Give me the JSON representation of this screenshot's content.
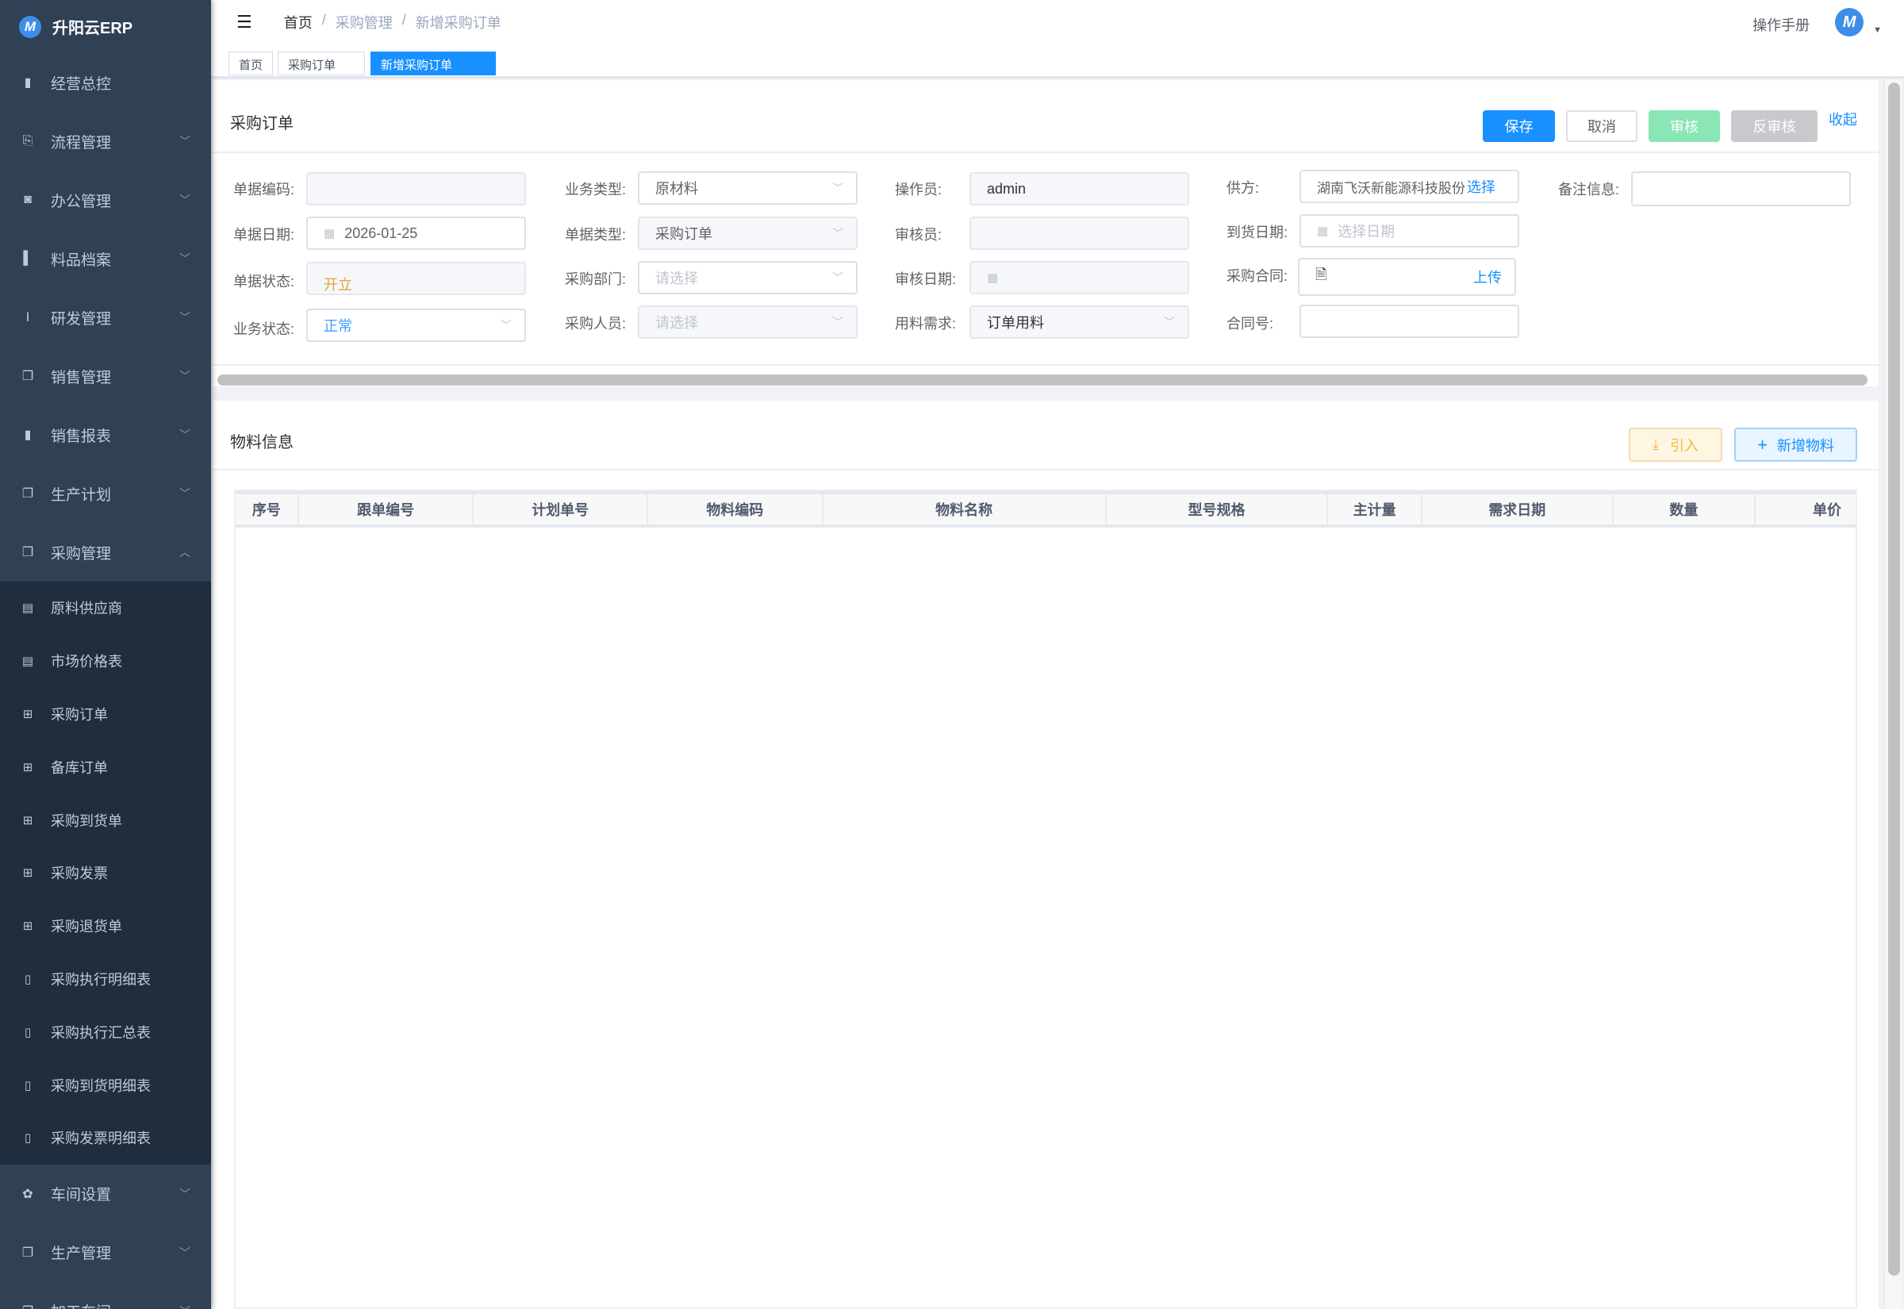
{
  "app": {
    "name": "升阳云ERP",
    "logo_letter": "M"
  },
  "sidebar": {
    "items": [
      {
        "label": "经营总控",
        "icon": "bar-chart-icon",
        "expandable": false
      },
      {
        "label": "流程管理",
        "icon": "workflow-icon",
        "expandable": true
      },
      {
        "label": "办公管理",
        "icon": "office-icon",
        "expandable": true
      },
      {
        "label": "料品档案",
        "icon": "archive-icon",
        "expandable": true
      },
      {
        "label": "研发管理",
        "icon": "rd-icon",
        "expandable": true
      },
      {
        "label": "销售管理",
        "icon": "documents-icon",
        "expandable": true
      },
      {
        "label": "销售报表",
        "icon": "bar-chart-icon",
        "expandable": true
      },
      {
        "label": "生产计划",
        "icon": "documents-icon",
        "expandable": true
      },
      {
        "label": "采购管理",
        "icon": "documents-icon",
        "expandable": true,
        "expanded": true
      }
    ],
    "submenu": [
      {
        "label": "原料供应商",
        "icon": "form-icon"
      },
      {
        "label": "市场价格表",
        "icon": "form-icon"
      },
      {
        "label": "采购订单",
        "icon": "table-icon"
      },
      {
        "label": "备库订单",
        "icon": "table-icon"
      },
      {
        "label": "采购到货单",
        "icon": "table-icon"
      },
      {
        "label": "采购发票",
        "icon": "table-icon"
      },
      {
        "label": "采购退货单",
        "icon": "table-icon"
      },
      {
        "label": "采购执行明细表",
        "icon": "book-icon"
      },
      {
        "label": "采购执行汇总表",
        "icon": "book-icon"
      },
      {
        "label": "采购到货明细表",
        "icon": "book-icon"
      },
      {
        "label": "采购发票明细表",
        "icon": "book-icon"
      }
    ],
    "bottom_items": [
      {
        "label": "车间设置",
        "icon": "gear-icon"
      },
      {
        "label": "生产管理",
        "icon": "documents-icon"
      },
      {
        "label": "加工车间",
        "icon": "documents-icon"
      }
    ]
  },
  "header": {
    "breadcrumb": [
      "首页",
      "采购管理",
      "新增采购订单"
    ],
    "separator": "/",
    "manual": "操作手册",
    "avatar_letter": "M"
  },
  "tags": [
    "首页",
    "采购订单",
    "新增采购订单"
  ],
  "order": {
    "title": "采购订单",
    "buttons": {
      "save": "保存",
      "cancel": "取消",
      "audit": "审核",
      "unaudit": "反审核",
      "collapse": "收起"
    },
    "fields": {
      "code": {
        "label": "单据编码:",
        "value": ""
      },
      "date": {
        "label": "单据日期:",
        "value": "2026-01-25"
      },
      "status": {
        "label": "单据状态:",
        "value": "开立"
      },
      "biz_status": {
        "label": "业务状态:",
        "value": "正常"
      },
      "biz_type": {
        "label": "业务类型:",
        "value": "原材料"
      },
      "doc_type": {
        "label": "单据类型:",
        "value": "采购订单"
      },
      "dept": {
        "label": "采购部门:",
        "placeholder": "请选择"
      },
      "buyer": {
        "label": "采购人员:",
        "placeholder": "请选择"
      },
      "operator": {
        "label": "操作员:",
        "value": "admin"
      },
      "auditor": {
        "label": "审核员:",
        "value": ""
      },
      "audit_date": {
        "label": "审核日期:",
        "value": ""
      },
      "material_need": {
        "label": "用料需求:",
        "value": "订单用料"
      },
      "supplier": {
        "label": "供方:",
        "value": "湖南飞沃新能源科技股份",
        "action": "选择"
      },
      "arrival_date": {
        "label": "到货日期:",
        "placeholder": "选择日期"
      },
      "contract": {
        "label": "采购合同:",
        "action": "上传"
      },
      "contract_no": {
        "label": "合同号:",
        "value": ""
      },
      "remark": {
        "label": "备注信息:",
        "value": ""
      }
    }
  },
  "materials": {
    "title": "物料信息",
    "import": "引入",
    "add": "新增物料",
    "columns": [
      "序号",
      "跟单编号",
      "计划单号",
      "物料编码",
      "物料名称",
      "型号规格",
      "主计量",
      "需求日期",
      "数量",
      "单价"
    ],
    "rows": []
  },
  "colors": {
    "sidebar": "#304156",
    "submenu": "#1f2d3d",
    "primary": "#1890ff",
    "audit": "#8ae6b4",
    "unaudit": "#c8c9cc",
    "status_open": "#e6a23c"
  }
}
